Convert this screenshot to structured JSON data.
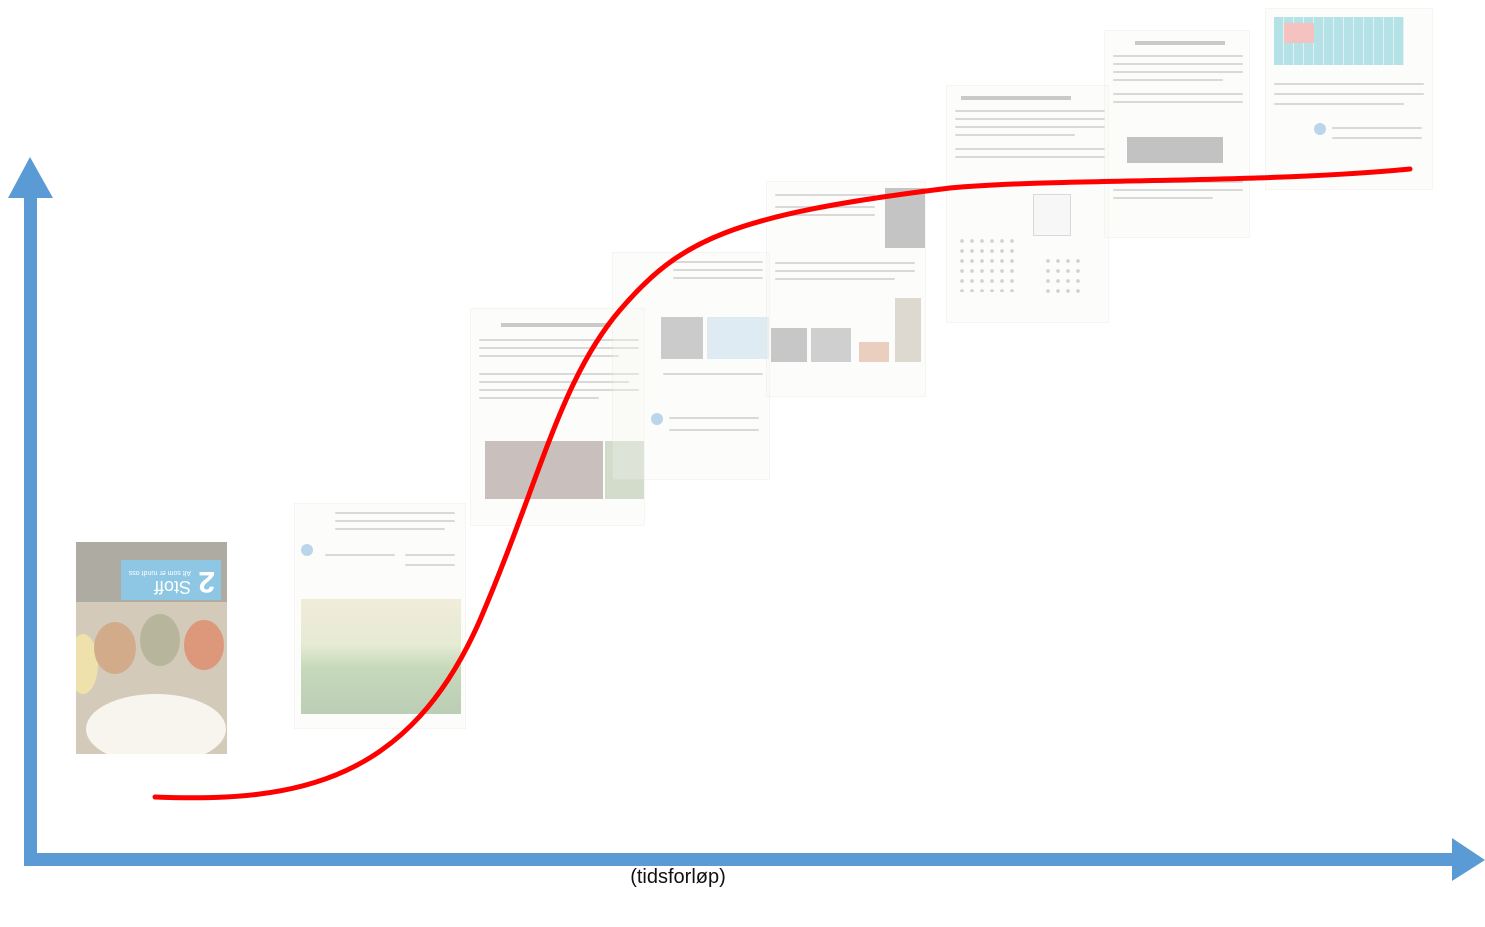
{
  "diagram": {
    "x_axis_label": "(tidsforløp)",
    "axis_color": "#5b9bd5",
    "curve_color": "#ff0000"
  },
  "cover": {
    "number": "2",
    "title": "Stoff",
    "subtitle": "Alt som er rundt oss"
  }
}
